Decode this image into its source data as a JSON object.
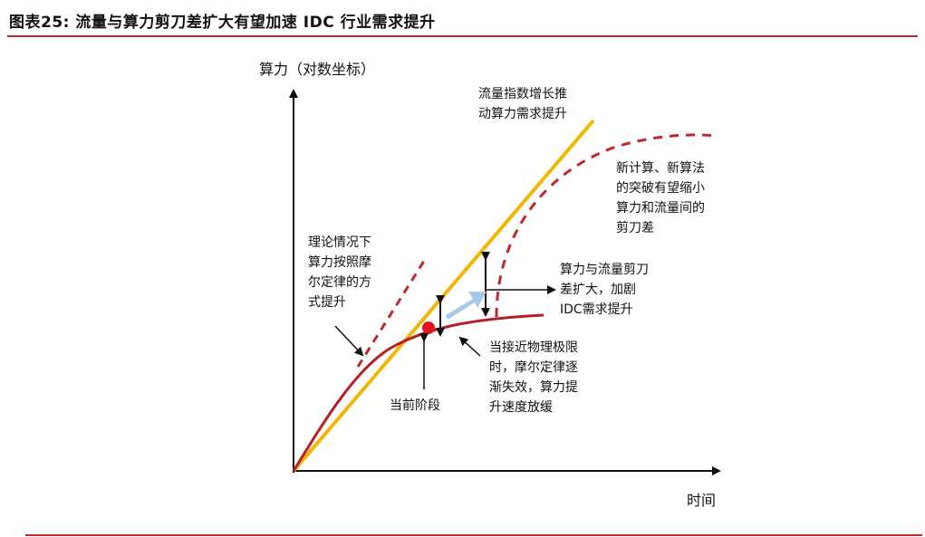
{
  "figure": {
    "title": "图表25:   流量与算力剪刀差扩大有望加速 IDC 行业需求提升"
  },
  "axes": {
    "y_label": "算力（对数坐标）",
    "x_label": "时间"
  },
  "annotations": {
    "traffic": [
      "流量指数增长推",
      "动算力需求提升"
    ],
    "new_algo": [
      "新计算、新算法",
      "的突破有望缩小",
      "算力和流量间的",
      "剪刀差"
    ],
    "moore_theory": [
      "理论情况下",
      "算力按照摩",
      "尔定律的方",
      "式提升"
    ],
    "gap": [
      "算力与流量剪刀",
      "差扩大，加剧",
      "IDC需求提升"
    ],
    "physical_limit": [
      "当接近物理极限",
      "时，摩尔定律逐",
      "渐失效，算力提",
      "升速度放缓"
    ],
    "current_stage": "当前阶段"
  },
  "colors": {
    "accent_red": "#c0282d",
    "traffic_line": "#f2b705",
    "compute_curve": "#b51f26",
    "dashed": "#c0282d",
    "highlight_arrow": "#a8c8e8",
    "current_point": "#e3141e"
  }
}
